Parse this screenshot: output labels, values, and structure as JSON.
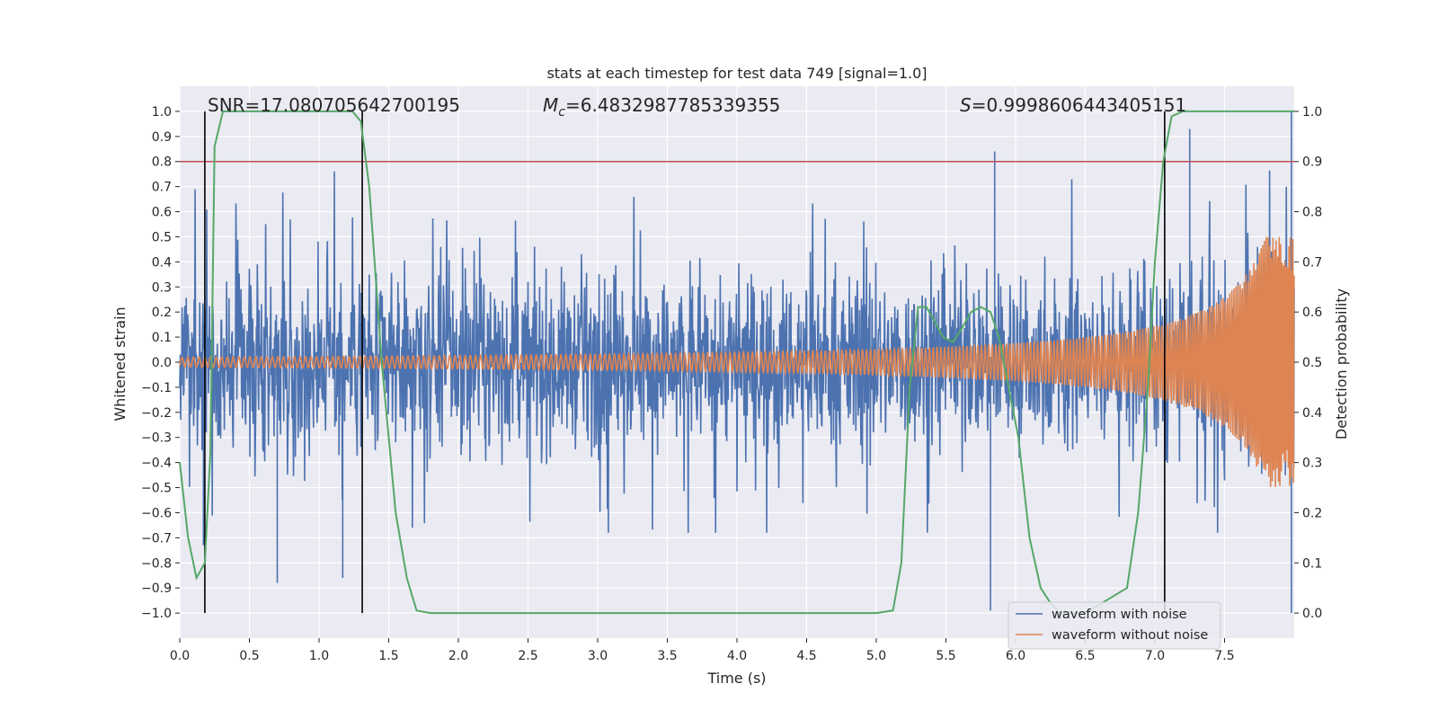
{
  "chart_data": {
    "type": "line",
    "title": "stats at each timestep for test data 749 [signal=1.0]",
    "xlabel": "Time (s)",
    "ylabel": "Whitened strain",
    "y2label": "Detection probability",
    "xlim": [
      0.0,
      8.0
    ],
    "ylim": [
      -1.1,
      1.1
    ],
    "y2lim": [
      -0.05,
      1.05
    ],
    "x_ticks": [
      "0.0",
      "0.5",
      "1.0",
      "1.5",
      "2.0",
      "2.5",
      "3.0",
      "3.5",
      "4.0",
      "4.5",
      "5.0",
      "5.5",
      "6.0",
      "6.5",
      "7.0",
      "7.5"
    ],
    "y_ticks": [
      "1.0",
      "0.9",
      "0.8",
      "0.7",
      "0.6",
      "0.5",
      "0.4",
      "0.3",
      "0.2",
      "0.1",
      "0.0",
      "−0.1",
      "−0.2",
      "−0.3",
      "−0.4",
      "−0.5",
      "−0.6",
      "−0.7",
      "−0.8",
      "−0.9",
      "−1.0"
    ],
    "y2_ticks": [
      "1.0",
      "0.9",
      "0.8",
      "0.7",
      "0.6",
      "0.5",
      "0.4",
      "0.3",
      "0.2",
      "0.1",
      "0.0"
    ],
    "annotations": {
      "snr": "SNR=17.080705642700195",
      "mc_symbol": "M",
      "mc_sub": "c",
      "mc_value": "=6.4832987785339355",
      "s_symbol": "S",
      "s_value": "=0.9998606443405151"
    },
    "threshold": {
      "y2": 0.9,
      "color": "#c44e52"
    },
    "vertical_lines_x": [
      0.18,
      1.31,
      7.07
    ],
    "series": [
      {
        "name": "waveform with noise",
        "color": "#4c72b0",
        "description": "noisy whitened strain, mostly within about -0.6 to 0.75",
        "notable_peaks": [
          {
            "x": 0.17,
            "y": -0.73
          },
          {
            "x": 0.7,
            "y": -0.88
          },
          {
            "x": 1.17,
            "y": -0.86
          },
          {
            "x": 5.85,
            "y": 0.84
          },
          {
            "x": 5.82,
            "y": -0.99
          },
          {
            "x": 7.25,
            "y": 0.93
          },
          {
            "x": 7.98,
            "y": 1.0
          },
          {
            "x": 7.98,
            "y": -1.0
          }
        ]
      },
      {
        "name": "waveform without noise",
        "color": "#dd8452",
        "description": "inspiral chirp: amplitude grows from about 0.02 to about 0.5 near the end",
        "amplitude_start": 0.02,
        "amplitude_end": 0.5
      },
      {
        "name": "detection probability",
        "color": "#55a868",
        "axis": "right",
        "x": [
          0.0,
          0.06,
          0.12,
          0.18,
          0.22,
          0.25,
          0.31,
          0.5,
          1.0,
          1.24,
          1.3,
          1.36,
          1.45,
          1.55,
          1.63,
          1.7,
          1.8,
          2.5,
          3.5,
          4.5,
          5.0,
          5.12,
          5.18,
          5.24,
          5.3,
          5.36,
          5.42,
          5.48,
          5.55,
          5.62,
          5.68,
          5.75,
          5.82,
          5.88,
          5.95,
          6.02,
          6.1,
          6.18,
          6.25,
          6.32,
          6.5,
          6.8,
          6.88,
          6.95,
          7.0,
          7.06,
          7.12,
          7.2,
          7.5,
          8.0
        ],
        "y": [
          0.3,
          0.15,
          0.07,
          0.1,
          0.32,
          0.93,
          1.0,
          1.0,
          1.0,
          1.0,
          0.98,
          0.85,
          0.5,
          0.2,
          0.07,
          0.005,
          0.0,
          0.0,
          0.0,
          0.0,
          0.0,
          0.005,
          0.1,
          0.45,
          0.61,
          0.61,
          0.58,
          0.55,
          0.54,
          0.57,
          0.6,
          0.61,
          0.6,
          0.55,
          0.45,
          0.35,
          0.15,
          0.05,
          0.02,
          0.0,
          0.0,
          0.05,
          0.2,
          0.45,
          0.7,
          0.9,
          0.99,
          1.0,
          1.0,
          1.0
        ]
      }
    ],
    "legend": {
      "placement": "lower-right",
      "entries": [
        {
          "label": "waveform with noise",
          "color": "#4c72b0"
        },
        {
          "label": "waveform without noise",
          "color": "#dd8452"
        }
      ]
    }
  }
}
